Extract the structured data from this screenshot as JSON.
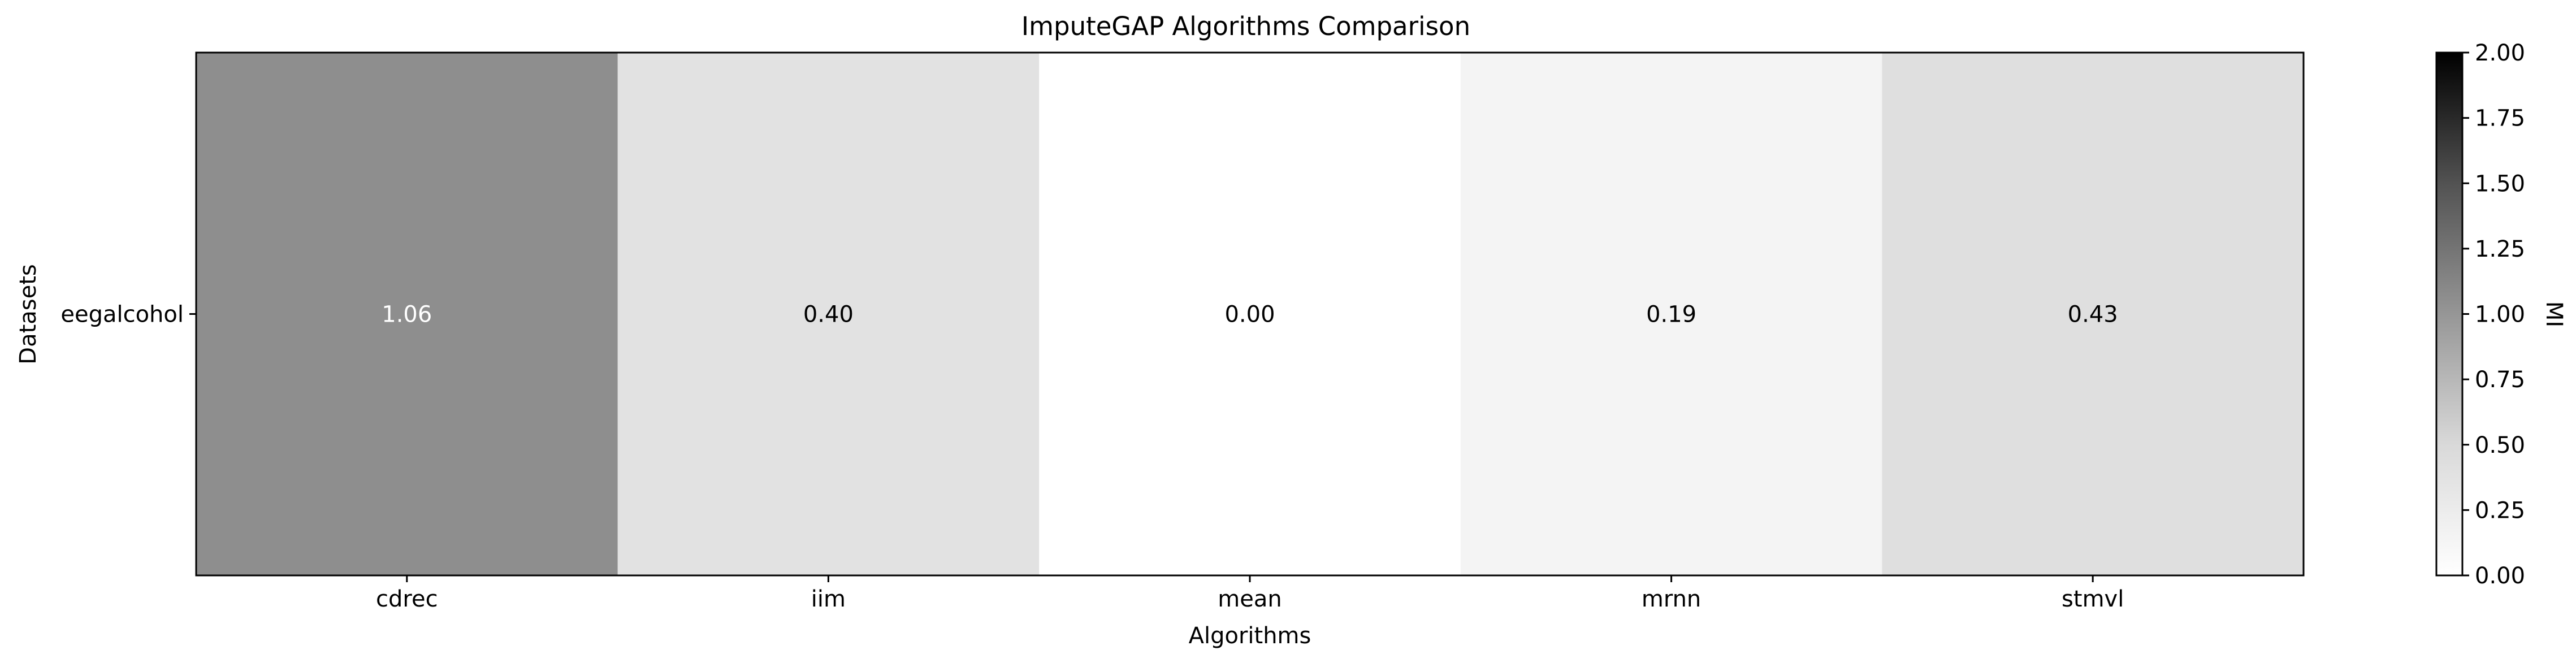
{
  "chart_data": {
    "type": "heatmap",
    "title": "ImputeGAP Algorithms Comparison",
    "xlabel": "Algorithms",
    "ylabel": "Datasets",
    "x_categories": [
      "cdrec",
      "iim",
      "mean",
      "mrnn",
      "stmvl"
    ],
    "y_categories": [
      "eegalcohol"
    ],
    "values": [
      [
        1.06,
        0.4,
        0.0,
        0.19,
        0.43
      ]
    ],
    "value_labels": [
      [
        "1.06",
        "0.40",
        "0.00",
        "0.19",
        "0.43"
      ]
    ],
    "colormap": "Greys",
    "colorbar": {
      "label": "MI",
      "range": [
        0,
        2
      ],
      "ticks": [
        "0.00",
        "0.25",
        "0.50",
        "0.75",
        "1.00",
        "1.25",
        "1.50",
        "1.75",
        "2.00"
      ]
    },
    "grid": false
  }
}
